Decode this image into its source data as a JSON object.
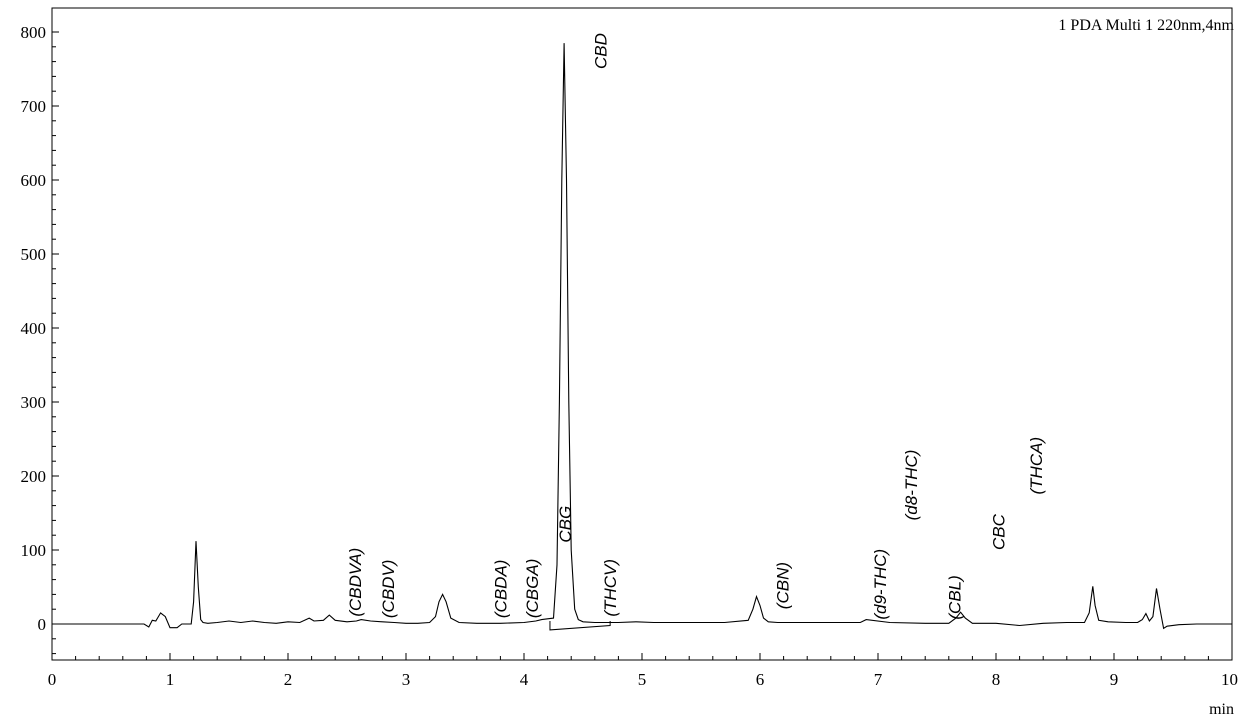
{
  "chart_data": {
    "type": "line",
    "title": "",
    "channel_label": "1 PDA Multi 1 220nm,4nm",
    "xlabel": "",
    "x_unit": "min",
    "ylabel": "",
    "xlim": [
      0,
      10
    ],
    "ylim": [
      -50,
      820
    ],
    "x_ticks": [
      0,
      1,
      2,
      3,
      4,
      5,
      6,
      7,
      8,
      9,
      10
    ],
    "y_ticks": [
      0,
      100,
      200,
      300,
      400,
      500,
      600,
      700,
      800
    ],
    "grid": false,
    "series": [
      {
        "x": [
          0,
          0.78,
          0.82,
          0.85,
          0.88,
          0.92,
          0.96,
          1.0,
          1.06,
          1.1,
          1.18,
          1.2,
          1.22,
          1.24,
          1.26,
          1.28,
          1.32,
          1.4,
          1.5,
          1.6,
          1.7,
          1.8,
          1.9,
          2.0,
          2.1,
          2.18,
          2.22,
          2.3,
          2.35,
          2.4,
          2.5,
          2.58,
          2.62,
          2.7,
          2.8,
          2.9,
          3.0,
          3.1,
          3.2,
          3.25,
          3.28,
          3.31,
          3.34,
          3.38,
          3.45,
          3.6,
          3.8,
          4.0,
          4.1,
          4.15,
          4.2,
          4.25,
          4.28,
          4.3,
          4.32,
          4.34,
          4.36,
          4.38,
          4.4,
          4.43,
          4.46,
          4.5,
          4.6,
          4.8,
          4.95,
          5.1,
          5.4,
          5.7,
          5.9,
          5.94,
          5.97,
          6.0,
          6.03,
          6.07,
          6.15,
          6.4,
          6.6,
          6.85,
          6.9,
          7.1,
          7.4,
          7.6,
          7.66,
          7.7,
          7.74,
          7.8,
          8.0,
          8.2,
          8.4,
          8.6,
          8.75,
          8.79,
          8.82,
          8.84,
          8.87,
          8.95,
          9.1,
          9.2,
          9.24,
          9.27,
          9.3,
          9.33,
          9.36,
          9.39,
          9.42,
          9.45,
          9.55,
          9.7,
          10.0
        ],
        "values": [
          0,
          0,
          -4,
          5,
          4,
          15,
          10,
          -5,
          -5,
          0,
          0,
          30,
          112,
          50,
          6,
          2,
          1,
          2,
          4,
          2,
          4,
          2,
          1,
          3,
          2,
          8,
          4,
          5,
          12,
          5,
          3,
          4,
          6,
          4,
          3,
          2,
          1,
          1,
          2,
          10,
          30,
          40,
          30,
          8,
          2,
          1,
          1,
          2,
          4,
          6,
          7,
          8,
          80,
          300,
          600,
          785,
          600,
          300,
          100,
          20,
          6,
          3,
          2,
          2,
          3,
          2,
          2,
          2,
          5,
          20,
          37,
          25,
          8,
          3,
          2,
          2,
          2,
          2,
          6,
          2,
          1,
          1,
          8,
          16,
          8,
          1,
          1,
          -2,
          1,
          2,
          2,
          15,
          51,
          25,
          5,
          3,
          2,
          2,
          6,
          14,
          4,
          10,
          48,
          20,
          -6,
          -3,
          -1,
          0,
          0
        ]
      }
    ],
    "peak_labels": [
      {
        "text": "(CBDVA)",
        "x": 2.62,
        "y": 10
      },
      {
        "text": "(CBDV)",
        "x": 2.9,
        "y": 8
      },
      {
        "text": "(CBDA)",
        "x": 3.85,
        "y": 8
      },
      {
        "text": "(CBGA)",
        "x": 4.12,
        "y": 8
      },
      {
        "text": "CBG",
        "x": 4.4,
        "y": 110
      },
      {
        "text": "CBD",
        "x": 4.7,
        "y": 750
      },
      {
        "text": "(THCV)",
        "x": 4.78,
        "y": 10
      },
      {
        "text": "(CBN)",
        "x": 6.24,
        "y": 20
      },
      {
        "text": "(d9-THC)",
        "x": 7.07,
        "y": 6
      },
      {
        "text": "(d8-THC)",
        "x": 7.33,
        "y": 140
      },
      {
        "text": "(CBL)",
        "x": 7.7,
        "y": 6
      },
      {
        "text": "CBC",
        "x": 8.07,
        "y": 100
      },
      {
        "text": "(THCA)",
        "x": 8.39,
        "y": 175
      }
    ]
  }
}
